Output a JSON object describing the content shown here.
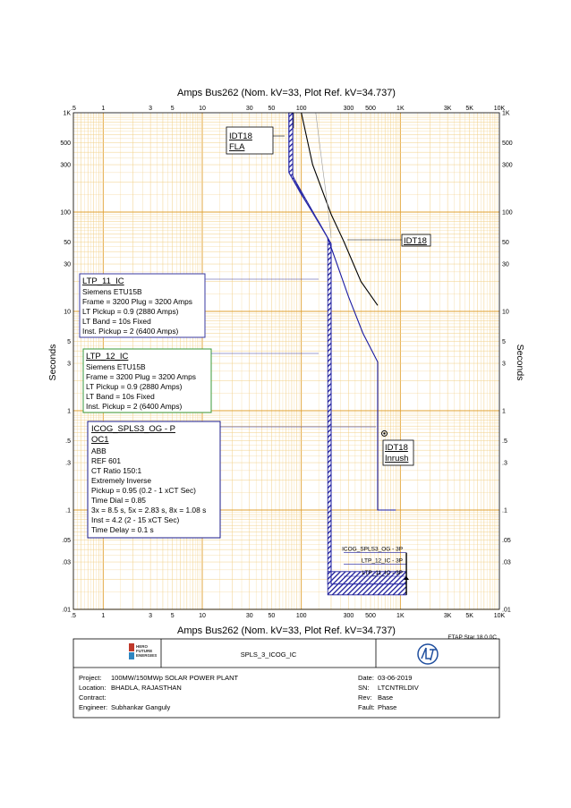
{
  "header": {
    "title": "Amps   Bus262 (Nom. kV=33, Plot Ref. kV=34.737)"
  },
  "footer_axis": {
    "title": "Amps   Bus262 (Nom. kV=33, Plot Ref. kV=34.737)",
    "software": "ETAP Star 18.0.0C"
  },
  "axes": {
    "ylabel_left": "Seconds",
    "ylabel_right": "Seconds",
    "x_ticks": [
      {
        "v": 0.5,
        "t": ".5"
      },
      {
        "v": 1,
        "t": "1"
      },
      {
        "v": 3,
        "t": "3"
      },
      {
        "v": 5,
        "t": "5"
      },
      {
        "v": 10,
        "t": "10"
      },
      {
        "v": 30,
        "t": "30"
      },
      {
        "v": 50,
        "t": "50"
      },
      {
        "v": 100,
        "t": "100"
      },
      {
        "v": 300,
        "t": "300"
      },
      {
        "v": 500,
        "t": "500"
      },
      {
        "v": 1000,
        "t": "1K"
      },
      {
        "v": 3000,
        "t": "3K"
      },
      {
        "v": 5000,
        "t": "5K"
      },
      {
        "v": 10000,
        "t": "10K"
      }
    ],
    "y_ticks": [
      {
        "v": 1000,
        "t": "1K"
      },
      {
        "v": 500,
        "t": "500"
      },
      {
        "v": 300,
        "t": "300"
      },
      {
        "v": 100,
        "t": "100"
      },
      {
        "v": 50,
        "t": "50"
      },
      {
        "v": 30,
        "t": "30"
      },
      {
        "v": 10,
        "t": "10"
      },
      {
        "v": 5,
        "t": "5"
      },
      {
        "v": 3,
        "t": "3"
      },
      {
        "v": 1,
        "t": "1"
      },
      {
        "v": 0.5,
        "t": ".5"
      },
      {
        "v": 0.3,
        "t": ".3"
      },
      {
        "v": 0.1,
        "t": ".1"
      },
      {
        "v": 0.05,
        "t": ".05"
      },
      {
        "v": 0.03,
        "t": ".03"
      },
      {
        "v": 0.01,
        "t": ".01"
      }
    ]
  },
  "chart_data": {
    "type": "line",
    "x_scale": "log",
    "y_scale": "log",
    "xlim": [
      0.5,
      10000
    ],
    "ylim": [
      0.01,
      1000
    ],
    "grid": true,
    "series": [
      {
        "name": "IDT18",
        "color": "#000000",
        "points": [
          [
            100,
            1000
          ],
          [
            130,
            300
          ],
          [
            200,
            95
          ],
          [
            270,
            50
          ],
          [
            400,
            20
          ],
          [
            590,
            11.5
          ]
        ]
      },
      {
        "name": "IDT18 FLA",
        "color": "#000000",
        "points": [
          [
            83,
            700
          ],
          [
            83,
            1000
          ]
        ]
      },
      {
        "name": "LTP_11_IC",
        "color": "#2c2ca8",
        "points": [
          [
            75,
            1000
          ],
          [
            75,
            250
          ],
          [
            100,
            150
          ],
          [
            150,
            80
          ],
          [
            185,
            55
          ]
        ]
      },
      {
        "name": "LTP_12_IC",
        "color": "#2c2ca8",
        "points": [
          [
            82,
            1000
          ],
          [
            82,
            230
          ],
          [
            110,
            130
          ],
          [
            160,
            70
          ],
          [
            200,
            48
          ],
          [
            200,
            0.018
          ],
          [
            1150,
            0.018
          ]
        ]
      },
      {
        "name": "ICOG_SPLS3_OG - P OC1",
        "color": "#1a1aa0",
        "points": [
          [
            185,
            55
          ],
          [
            300,
            14
          ],
          [
            420,
            6
          ],
          [
            590,
            3.1
          ],
          [
            590,
            0.1
          ],
          [
            900,
            0.1
          ]
        ]
      }
    ],
    "hatched_bands": [
      {
        "name": "LTP breaker band upper",
        "points": [
          [
            75,
            1000
          ],
          [
            82,
            1000
          ],
          [
            82,
            230
          ],
          [
            200,
            48
          ],
          [
            200,
            0.018
          ],
          [
            185,
            0.018
          ],
          [
            185,
            55
          ],
          [
            75,
            250
          ]
        ]
      },
      {
        "name": "LTP breaker band lower",
        "points": [
          [
            185,
            0.024
          ],
          [
            1150,
            0.024
          ],
          [
            1150,
            0.014
          ],
          [
            185,
            0.014
          ]
        ]
      }
    ],
    "inrush_point": [
      690,
      0.59
    ],
    "legend_markers": [
      {
        "text": "ICOG_SPLS3_OG - 3P",
        "y": 0.038
      },
      {
        "text": "LTP_12_IC - 3P",
        "y": 0.029
      },
      {
        "text": "LTP_11_IC - 3P",
        "y": 0.022
      }
    ],
    "annotations": {
      "idt18_fla": [
        "IDT18",
        "FLA"
      ],
      "idt18": "IDT18",
      "idt18_inrush": [
        "IDT18",
        "Inrush"
      ]
    }
  },
  "boxes": {
    "ltp11": {
      "title": "LTP_11_IC",
      "lines": [
        "Siemens  ETU15B",
        "Frame = 3200 Plug = 3200 Amps",
        "LT Pickup = 0.9 (2880 Amps)",
        "LT Band = 10s Fixed",
        "Inst. Pickup = 2 (6400 Amps)"
      ],
      "border": "#3a3aa0"
    },
    "ltp12": {
      "title": "LTP_12_IC",
      "lines": [
        "Siemens  ETU15B",
        "Frame = 3200 Plug = 3200 Amps",
        "LT Pickup = 0.9 (2880 Amps)",
        "LT Band = 10s Fixed",
        "Inst. Pickup = 2 (6400 Amps)"
      ],
      "border": "#3a9a3a"
    },
    "icog": {
      "title": "ICOG_SPLS3_OG - P",
      "title2": "OC1",
      "lines": [
        "ABB",
        "REF 601",
        "CT Ratio 150:1",
        "Extremely Inverse",
        "Pickup = 0.95 (0.2 - 1  xCT Sec)",
        "Time Dial = 0.85",
        "3x = 8.5 s, 5x = 2.83 s, 8x = 1.08 s",
        "Inst = 4.2 (2 - 15  xCT Sec)",
        "Time Delay = 0.1 s"
      ],
      "border": "#1a1a8a"
    }
  },
  "title_block": {
    "logo_text": [
      "HERO",
      "FUTURE",
      "ENERGIES"
    ],
    "drawing_name": "SPLS_3_ICOG_IC",
    "project_label": "Project:",
    "project": "100MW/150MWp SOLAR POWER PLANT",
    "location_label": "Location:",
    "location": "BHADLA, RAJASTHAN",
    "contract_label": "Contract:",
    "contract": "",
    "engineer_label": "Engineer:",
    "engineer": "Subhankar Ganguly",
    "date_label": "Date:",
    "date": "03-06-2019",
    "sn_label": "SN:",
    "sn": "LTCNTRLDIV",
    "rev_label": "Rev:",
    "rev": "Base",
    "fault_label": "Fault:",
    "fault": "Phase"
  },
  "colors": {
    "grid_major": "#e0a030",
    "grid_minor": "#f2cf85",
    "blue": "#2c2ca8",
    "hatch": "#1a1a99"
  }
}
